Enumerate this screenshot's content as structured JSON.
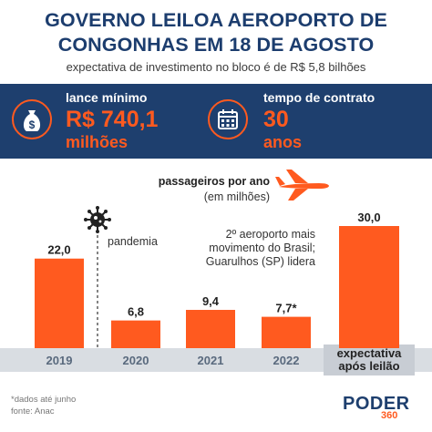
{
  "title_line1": "GOVERNO LEILOA AEROPORTO DE",
  "title_line2": "CONGONHAS EM 18 DE AGOSTO",
  "subtitle": "expectativa de investimento no bloco é de R$ 5,8 bilhões",
  "highlights": {
    "bid": {
      "label": "lance mínimo",
      "value": "R$ 740,1",
      "unit": "milhões",
      "icon": "money-bag-icon"
    },
    "contract": {
      "label": "tempo de contrato",
      "value": "30",
      "unit": "anos",
      "icon": "calendar-icon"
    }
  },
  "legend": {
    "title": "passageiros por ano",
    "subtitle": "(em milhões)",
    "icon": "airplane-icon"
  },
  "annotations": {
    "pandemic": "pandemia",
    "note_line1": "2º aeroporto mais",
    "note_line2": "movimento do Brasil;",
    "note_line3": "Guarulhos (SP) lidera"
  },
  "footnotes": {
    "line1": "*dados até junho",
    "line2": "fonte: Anac"
  },
  "logo": {
    "name": "PODER",
    "number": "360"
  },
  "colors": {
    "bar": "#ff5a1f",
    "navy": "#1e3f6e",
    "axis_band": "#d9dde2",
    "highlight_column": "#c8cdd4"
  },
  "chart_data": {
    "type": "bar",
    "categories": [
      "2019",
      "2020",
      "2021",
      "2022",
      "expectativa após leilão"
    ],
    "values": [
      22.0,
      6.8,
      9.4,
      7.7,
      30.0
    ],
    "value_labels": [
      "22,0",
      "6,8",
      "9,4",
      "7,7*",
      "30,0"
    ],
    "ylabel": "passageiros por ano (em milhões)",
    "ylim": [
      0,
      30
    ],
    "grid": false,
    "legend": "none"
  }
}
